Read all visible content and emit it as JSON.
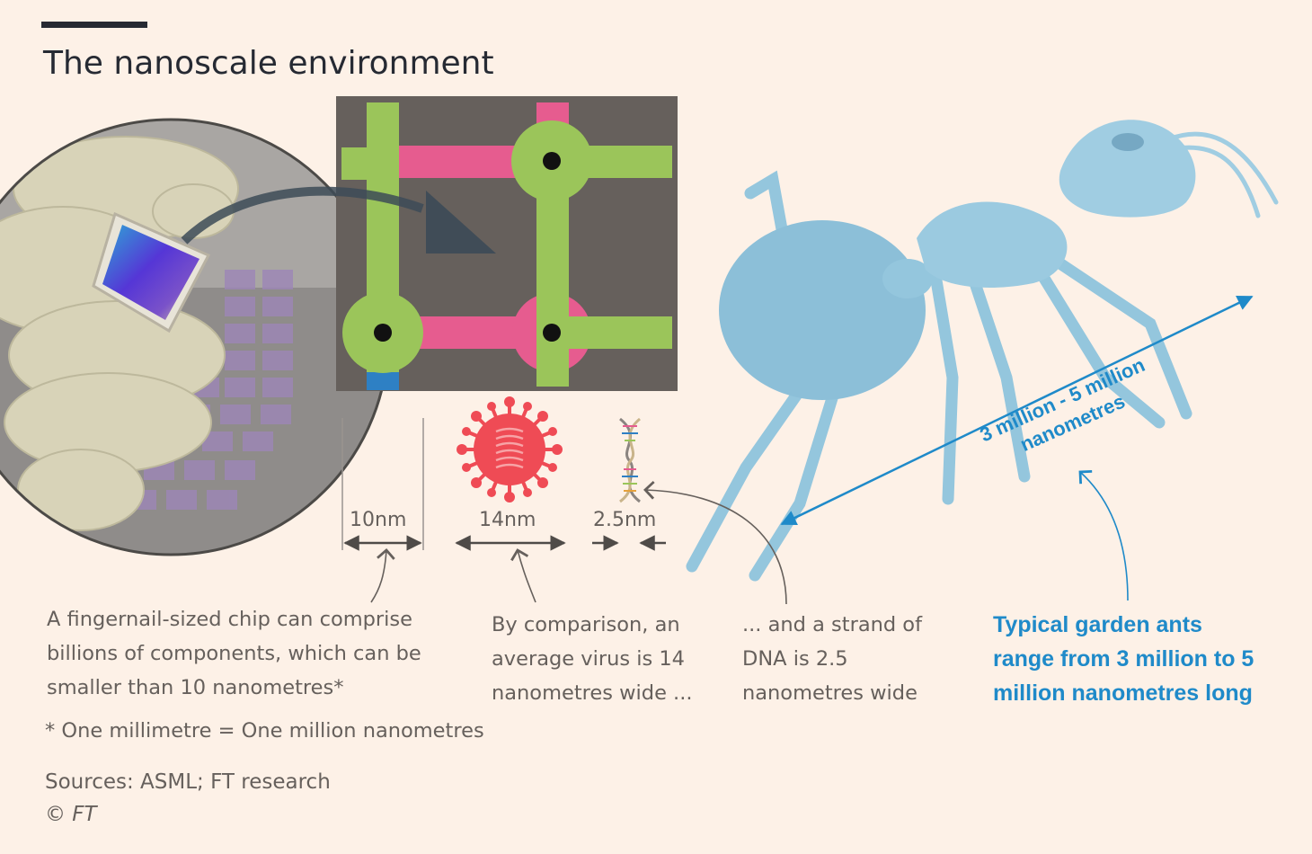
{
  "title": "The nanoscale environment",
  "scales": {
    "chip_component": "10nm",
    "virus": "14nm",
    "dna": "2.5nm"
  },
  "captions": {
    "chip": [
      "A fingernail-sized chip can comprise",
      "billions of components, which can be",
      "smaller than 10 nanometres*"
    ],
    "virus": [
      "By comparison, an",
      "average virus is 14",
      "nanometres wide ..."
    ],
    "dna": [
      "... and a strand of",
      "DNA is 2.5",
      "nanometres wide"
    ],
    "ant": [
      "Typical garden ants",
      "range from 3 million to 5",
      "million nanometres long"
    ]
  },
  "ant_label": [
    "3 million - 5 million",
    "nanometres"
  ],
  "footnote": "* One millimetre = One million nanometres",
  "sources": "Sources: ASML; FT research",
  "copyright": "© FT",
  "colors": {
    "background": "#fdf1e7",
    "circuit_bg": "#66605c",
    "circuit_green": "#9bc55a",
    "circuit_pink": "#e65c8f",
    "virus_red": "#ef4b55",
    "ant_blue": "#1f8ac9"
  }
}
